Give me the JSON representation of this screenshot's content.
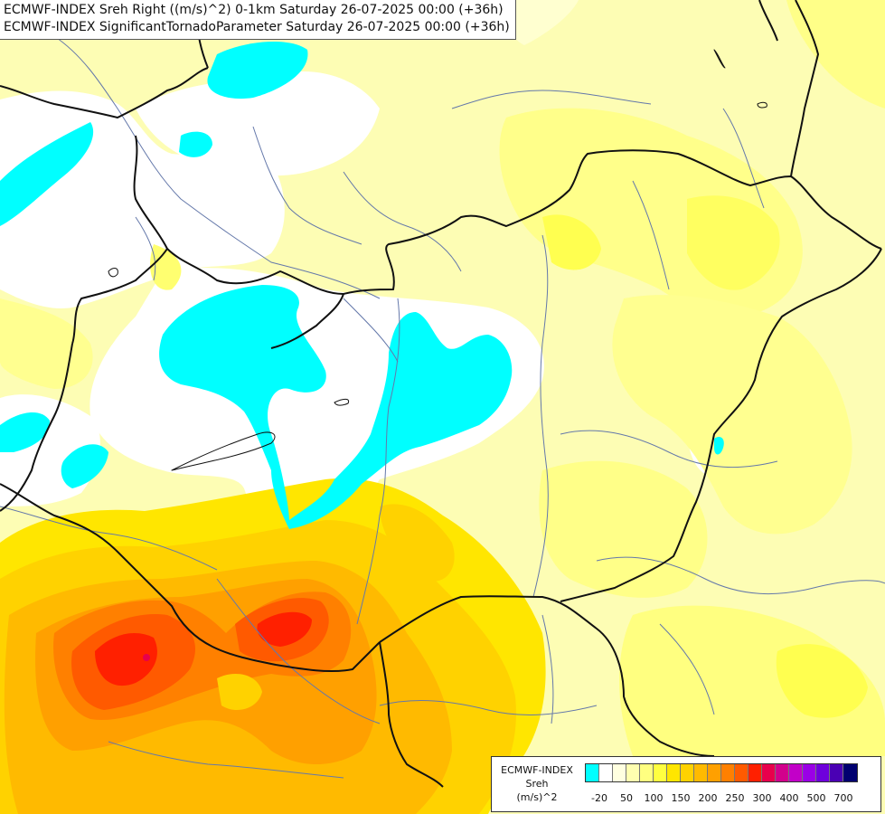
{
  "title": {
    "line1": "ECMWF-INDEX Sreh Right ((m/s)^2) 0-1km Saturday 26-07-2025 00:00 (+36h)",
    "line2": "ECMWF-INDEX SignificantTornadoParameter Saturday 26-07-2025 00:00 (+36h)"
  },
  "legend": {
    "title1": "ECMWF-INDEX",
    "title2": "Sreh",
    "unit": "(m/s)^2",
    "colors": [
      "#00ffff",
      "#ffffff",
      "#ffffe0",
      "#ffffb0",
      "#ffff80",
      "#ffff40",
      "#ffe600",
      "#ffd200",
      "#ffba00",
      "#ffa000",
      "#ff8000",
      "#ff5a00",
      "#ff2000",
      "#e8004c",
      "#d2008c",
      "#c200c8",
      "#9a00e6",
      "#6e00dc",
      "#4a00b4",
      "#000070"
    ],
    "tick_labels": [
      "-20",
      "50",
      "100",
      "150",
      "200",
      "250",
      "300",
      "400",
      "500",
      "700"
    ]
  },
  "colors": {
    "border_line": "#111111",
    "river_line": "#6478aa",
    "cyan": "#00ffff"
  }
}
